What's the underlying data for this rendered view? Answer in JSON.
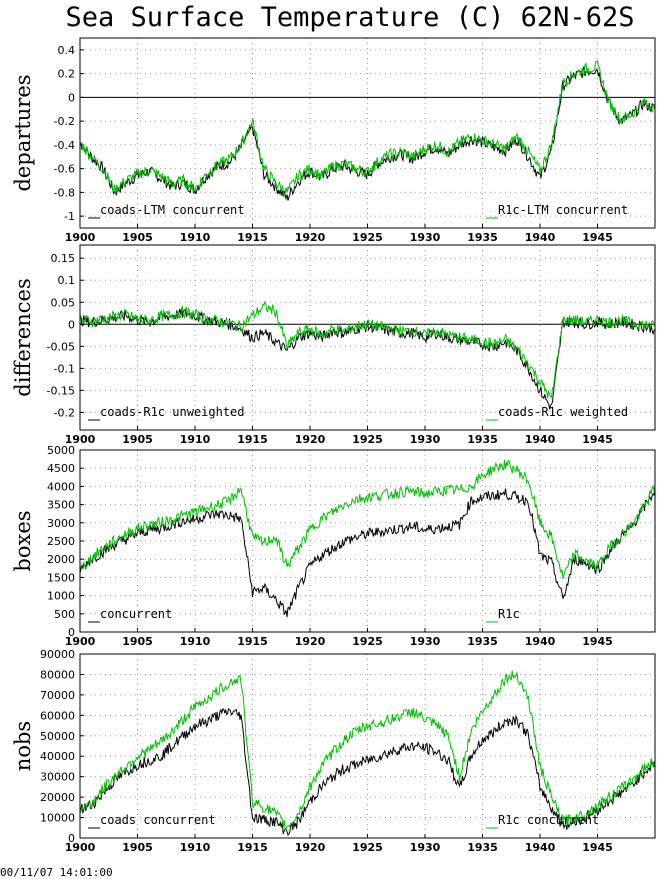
{
  "title": "Sea Surface Temperature (C) 62N-62S",
  "footer": {
    "timestamp": "00/11/07 14:01:00"
  },
  "colors": {
    "series_a": "#000000",
    "series_b": "#00c000",
    "grid": "#9a9a9a"
  },
  "chart_data": [
    {
      "type": "line",
      "ylabel": "departures",
      "xlim": [
        1900,
        1950
      ],
      "ylim": [
        -1.1,
        0.5
      ],
      "xticks": [
        "1900",
        "1905",
        "1910",
        "1915",
        "1920",
        "1925",
        "1930",
        "1935",
        "1940",
        "1945"
      ],
      "yticks": [
        "-1",
        "-0.8",
        "-0.6",
        "-0.4",
        "-0.2",
        "0",
        "0.2",
        "0.4"
      ],
      "grid": true,
      "zero_line": true,
      "legend": {
        "left": "coads-LTM concurrent",
        "right": "R1c-LTM concurrent"
      },
      "x": [
        1900,
        1901,
        1902,
        1903,
        1904,
        1905,
        1906,
        1907,
        1908,
        1909,
        1910,
        1911,
        1912,
        1913,
        1914,
        1915,
        1916,
        1917,
        1918,
        1919,
        1920,
        1921,
        1922,
        1923,
        1924,
        1925,
        1926,
        1927,
        1928,
        1929,
        1930,
        1931,
        1932,
        1933,
        1934,
        1935,
        1936,
        1937,
        1938,
        1939,
        1940,
        1941,
        1942,
        1943,
        1944,
        1945,
        1946,
        1947,
        1948,
        1949,
        1950
      ],
      "series": [
        {
          "name": "coads-LTM concurrent",
          "values": [
            -0.38,
            -0.5,
            -0.6,
            -0.8,
            -0.72,
            -0.66,
            -0.62,
            -0.68,
            -0.75,
            -0.72,
            -0.78,
            -0.66,
            -0.58,
            -0.55,
            -0.42,
            -0.25,
            -0.65,
            -0.75,
            -0.85,
            -0.7,
            -0.62,
            -0.68,
            -0.6,
            -0.58,
            -0.62,
            -0.65,
            -0.55,
            -0.5,
            -0.48,
            -0.52,
            -0.45,
            -0.42,
            -0.48,
            -0.4,
            -0.35,
            -0.38,
            -0.42,
            -0.45,
            -0.35,
            -0.5,
            -0.68,
            -0.45,
            0.1,
            0.18,
            0.22,
            0.24,
            -0.05,
            -0.2,
            -0.15,
            -0.05,
            -0.1
          ]
        },
        {
          "name": "R1c-LTM concurrent",
          "values": [
            -0.38,
            -0.5,
            -0.6,
            -0.78,
            -0.7,
            -0.65,
            -0.61,
            -0.66,
            -0.73,
            -0.7,
            -0.77,
            -0.64,
            -0.57,
            -0.52,
            -0.4,
            -0.2,
            -0.6,
            -0.72,
            -0.8,
            -0.66,
            -0.6,
            -0.66,
            -0.58,
            -0.56,
            -0.6,
            -0.63,
            -0.53,
            -0.48,
            -0.46,
            -0.5,
            -0.43,
            -0.4,
            -0.46,
            -0.38,
            -0.33,
            -0.36,
            -0.4,
            -0.43,
            -0.33,
            -0.46,
            -0.62,
            -0.4,
            0.12,
            0.2,
            0.24,
            0.26,
            -0.04,
            -0.19,
            -0.14,
            -0.04,
            -0.09
          ]
        }
      ]
    },
    {
      "type": "line",
      "ylabel": "differences",
      "xlim": [
        1900,
        1950
      ],
      "ylim": [
        -0.24,
        0.18
      ],
      "xticks": [
        "1900",
        "1905",
        "1910",
        "1915",
        "1920",
        "1925",
        "1930",
        "1935",
        "1940",
        "1945"
      ],
      "yticks": [
        "-0.2",
        "-0.15",
        "-0.1",
        "-0.05",
        "0",
        "0.05",
        "0.1",
        "0.15"
      ],
      "grid": true,
      "zero_line": true,
      "legend": {
        "left": "coads-R1c unweighted",
        "right": "coads-R1c weighted"
      },
      "x": [
        1900,
        1901,
        1902,
        1903,
        1904,
        1905,
        1906,
        1907,
        1908,
        1909,
        1910,
        1911,
        1912,
        1913,
        1914,
        1915,
        1916,
        1917,
        1918,
        1919,
        1920,
        1921,
        1922,
        1923,
        1924,
        1925,
        1926,
        1927,
        1928,
        1929,
        1930,
        1931,
        1932,
        1933,
        1934,
        1935,
        1936,
        1937,
        1938,
        1939,
        1940,
        1941,
        1942,
        1943,
        1944,
        1945,
        1946,
        1947,
        1948,
        1949,
        1950
      ],
      "series": [
        {
          "name": "coads-R1c unweighted",
          "values": [
            0.01,
            0.005,
            0.01,
            0.015,
            0.02,
            0.01,
            0.005,
            0.015,
            0.02,
            0.025,
            0.02,
            0.01,
            0.005,
            0.0,
            -0.01,
            -0.03,
            -0.02,
            -0.04,
            -0.06,
            -0.03,
            -0.02,
            -0.03,
            -0.015,
            -0.02,
            -0.01,
            -0.005,
            -0.01,
            -0.015,
            -0.02,
            -0.02,
            -0.03,
            -0.02,
            -0.03,
            -0.035,
            -0.04,
            -0.045,
            -0.05,
            -0.04,
            -0.06,
            -0.1,
            -0.15,
            -0.19,
            0.005,
            0.005,
            0.0,
            0.005,
            0.0,
            0.005,
            0.0,
            -0.005,
            -0.01
          ]
        },
        {
          "name": "coads-R1c weighted",
          "values": [
            0.01,
            0.008,
            0.012,
            0.018,
            0.022,
            0.012,
            0.008,
            0.018,
            0.022,
            0.028,
            0.022,
            0.012,
            0.008,
            0.002,
            -0.005,
            0.02,
            0.04,
            0.03,
            -0.05,
            -0.02,
            -0.01,
            -0.025,
            -0.01,
            -0.015,
            -0.005,
            0.0,
            -0.005,
            -0.01,
            -0.015,
            -0.015,
            -0.025,
            -0.015,
            -0.025,
            -0.03,
            -0.035,
            -0.04,
            -0.045,
            -0.035,
            -0.055,
            -0.09,
            -0.13,
            -0.17,
            0.01,
            0.01,
            0.005,
            0.01,
            0.005,
            0.008,
            0.004,
            0.0,
            -0.005
          ]
        }
      ]
    },
    {
      "type": "line",
      "ylabel": "boxes",
      "xlim": [
        1900,
        1950
      ],
      "ylim": [
        0,
        5000
      ],
      "xticks": [
        "1900",
        "1905",
        "1910",
        "1915",
        "1920",
        "1925",
        "1930",
        "1935",
        "1940",
        "1945"
      ],
      "yticks": [
        "0",
        "500",
        "1000",
        "1500",
        "2000",
        "2500",
        "3000",
        "3500",
        "4000",
        "4500",
        "5000"
      ],
      "grid": true,
      "zero_line": false,
      "legend": {
        "left": "concurrent",
        "right": "R1c"
      },
      "x": [
        1900,
        1901,
        1902,
        1903,
        1904,
        1905,
        1906,
        1907,
        1908,
        1909,
        1910,
        1911,
        1912,
        1913,
        1914,
        1915,
        1916,
        1917,
        1918,
        1919,
        1920,
        1921,
        1922,
        1923,
        1924,
        1925,
        1926,
        1927,
        1928,
        1929,
        1930,
        1931,
        1932,
        1933,
        1934,
        1935,
        1936,
        1937,
        1938,
        1939,
        1940,
        1941,
        1942,
        1943,
        1944,
        1945,
        1946,
        1947,
        1948,
        1949,
        1950
      ],
      "series": [
        {
          "name": "concurrent",
          "values": [
            1700,
            2000,
            2200,
            2400,
            2550,
            2700,
            2800,
            2850,
            2950,
            3050,
            3100,
            3200,
            3250,
            3200,
            3100,
            1100,
            1200,
            900,
            500,
            1200,
            1800,
            2100,
            2300,
            2500,
            2600,
            2700,
            2750,
            2800,
            2850,
            2900,
            2800,
            2850,
            2900,
            2950,
            3600,
            3700,
            3750,
            3800,
            3700,
            3600,
            2100,
            1900,
            900,
            2000,
            1900,
            1700,
            2200,
            2600,
            2900,
            3400,
            3900
          ]
        },
        {
          "name": "R1c",
          "values": [
            1700,
            2050,
            2300,
            2500,
            2700,
            2850,
            2950,
            3000,
            3100,
            3200,
            3300,
            3400,
            3500,
            3600,
            3950,
            2600,
            2450,
            2600,
            1800,
            2300,
            2800,
            3100,
            3300,
            3500,
            3650,
            3700,
            3750,
            3800,
            3850,
            3850,
            3800,
            3850,
            3900,
            3900,
            4000,
            4300,
            4500,
            4600,
            4450,
            4150,
            3000,
            2600,
            1500,
            2150,
            1950,
            1800,
            2300,
            2650,
            2950,
            3400,
            4000
          ]
        }
      ]
    },
    {
      "type": "line",
      "ylabel": "nobs",
      "xlim": [
        1900,
        1950
      ],
      "ylim": [
        0,
        90000
      ],
      "xticks": [
        "1900",
        "1905",
        "1910",
        "1915",
        "1920",
        "1925",
        "1930",
        "1935",
        "1940",
        "1945"
      ],
      "yticks": [
        "0",
        "10000",
        "20000",
        "30000",
        "40000",
        "50000",
        "60000",
        "70000",
        "80000",
        "90000"
      ],
      "grid": true,
      "zero_line": false,
      "legend": {
        "left": "coads concurrent",
        "right": "R1c concurrent"
      },
      "x": [
        1900,
        1901,
        1902,
        1903,
        1904,
        1905,
        1906,
        1907,
        1908,
        1909,
        1910,
        1911,
        1912,
        1913,
        1914,
        1915,
        1916,
        1917,
        1918,
        1919,
        1920,
        1921,
        1922,
        1923,
        1924,
        1925,
        1926,
        1927,
        1928,
        1929,
        1930,
        1931,
        1932,
        1933,
        1934,
        1935,
        1936,
        1937,
        1938,
        1939,
        1940,
        1941,
        1942,
        1943,
        1944,
        1945,
        1946,
        1947,
        1948,
        1949,
        1950
      ],
      "series": [
        {
          "name": "coads concurrent",
          "values": [
            14000,
            16000,
            22000,
            28000,
            32000,
            36000,
            38000,
            40000,
            45000,
            50000,
            55000,
            57000,
            60000,
            62000,
            60000,
            10000,
            9000,
            8000,
            3000,
            8000,
            18000,
            25000,
            30000,
            34000,
            36000,
            38000,
            40000,
            42000,
            44000,
            45000,
            44000,
            42000,
            38000,
            24000,
            40000,
            48000,
            52000,
            57000,
            58000,
            50000,
            25000,
            15000,
            6000,
            8000,
            10000,
            14000,
            18000,
            22000,
            26000,
            32000,
            37000
          ]
        },
        {
          "name": "R1c concurrent",
          "values": [
            14000,
            17000,
            24000,
            30000,
            35000,
            40000,
            43000,
            47000,
            52000,
            58000,
            64000,
            68000,
            72000,
            76000,
            78000,
            18000,
            15000,
            12000,
            5000,
            12000,
            25000,
            35000,
            42000,
            48000,
            52000,
            55000,
            56000,
            58000,
            60000,
            62000,
            58000,
            55000,
            50000,
            30000,
            52000,
            62000,
            70000,
            78000,
            80000,
            68000,
            35000,
            20000,
            8000,
            10000,
            12000,
            16000,
            20000,
            24000,
            28000,
            34000,
            38000
          ]
        }
      ]
    }
  ]
}
